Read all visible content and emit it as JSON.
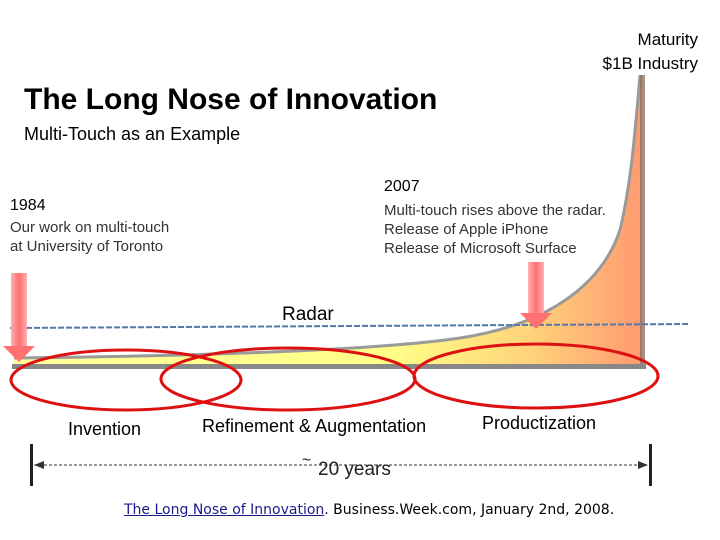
{
  "maturity": {
    "line1": "Maturity",
    "line2": "$1B Industry"
  },
  "title": "The Long Nose of Innovation",
  "subtitle": "Multi-Touch as an Example",
  "milestone_1984": {
    "year": "1984",
    "line1": "Our work on multi-touch",
    "line2": "at University of Toronto"
  },
  "milestone_2007": {
    "year": "2007",
    "line1": "Multi-touch rises above the radar.",
    "line2": "Release of Apple iPhone",
    "line3": "Release of Microsoft Surface"
  },
  "radar_label": "Radar",
  "phases": {
    "invention": "Invention",
    "refinement": "Refinement & Augmentation",
    "productization": "Productization"
  },
  "timespan": {
    "tilde": "~",
    "label": "20 years"
  },
  "citation": {
    "link_text": "The Long Nose of Innovation",
    "rest": ". Business.Week.com, January 2nd, 2008."
  },
  "colors": {
    "curve_fill_light": "#ffff99",
    "curve_fill_dark": "#ff9966",
    "ellipse_stroke": "#dd1111",
    "radar_line": "#5577aa",
    "arrow_fill": "#ff8080"
  }
}
